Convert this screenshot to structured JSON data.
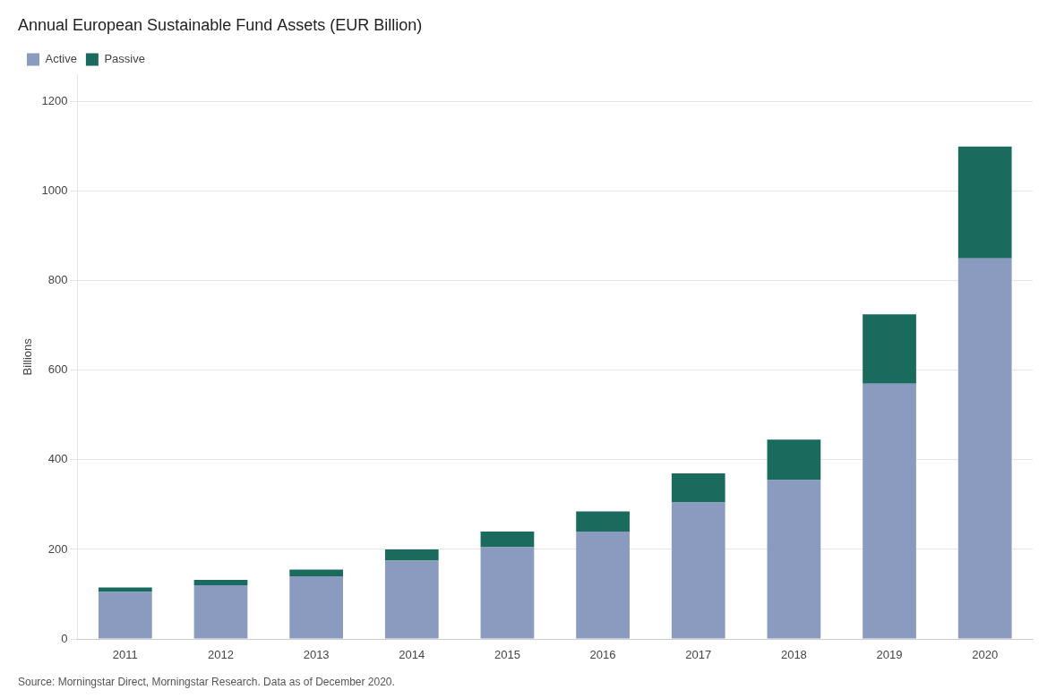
{
  "chart_data": {
    "type": "bar",
    "stacked": true,
    "title": "Annual European Sustainable Fund Assets (EUR Billion)",
    "y_label": "Billions",
    "annotations": [
      "Source: Morningstar Direct, Morningstar Research. Data as of December 2020."
    ],
    "categories": [
      "2011",
      "2012",
      "2013",
      "2014",
      "2015",
      "2016",
      "2017",
      "2018",
      "2019",
      "2020"
    ],
    "series": [
      {
        "name": "Active",
        "color": "#8a9bbf",
        "values": [
          105,
          120,
          140,
          175,
          205,
          240,
          305,
          355,
          570,
          850
        ]
      },
      {
        "name": "Passive",
        "color": "#1a6b5e",
        "values": [
          10,
          12,
          15,
          25,
          35,
          45,
          65,
          90,
          155,
          250
        ]
      }
    ],
    "ylim": [
      0,
      1260
    ],
    "yticks": [
      0,
      200,
      400,
      600,
      800,
      1000,
      1200
    ],
    "grid": true,
    "legend": "top"
  }
}
